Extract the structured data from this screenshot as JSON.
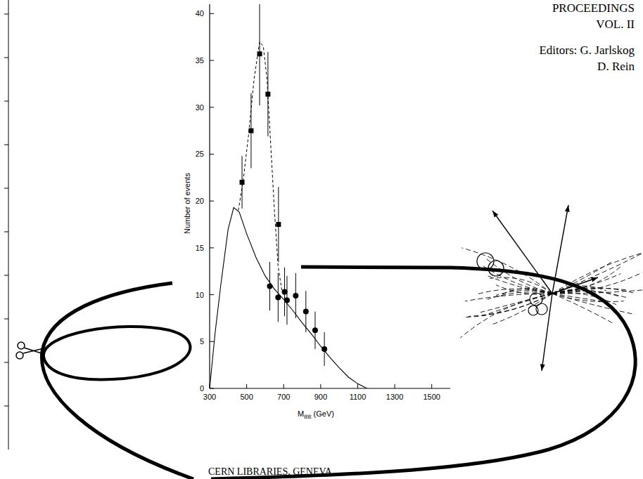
{
  "chart_data": {
    "type": "scatter",
    "x_label": "Mℓℓℓℓ (GeV)",
    "y_label": "Number of events",
    "xlim": [
      300,
      1600
    ],
    "xticks": [
      300,
      500,
      700,
      900,
      1100,
      1300,
      1500
    ],
    "ylim": [
      0,
      41
    ],
    "yticks": [
      0,
      5,
      10,
      15,
      20,
      25,
      30,
      35,
      40
    ],
    "grid": false,
    "series": [
      {
        "type": "line",
        "line_style": "solid",
        "color": "#000000",
        "x": [
          300,
          330,
          360,
          400,
          430,
          460,
          500,
          550,
          600,
          650,
          700,
          750,
          800,
          850,
          900,
          950,
          1000,
          1050,
          1100,
          1150
        ],
        "values": [
          0,
          6,
          11,
          17,
          19.3,
          18.8,
          16.5,
          14,
          12,
          10.6,
          9.5,
          8.3,
          7,
          5.8,
          4.5,
          3.3,
          2.2,
          1.2,
          0.5,
          0
        ]
      },
      {
        "type": "line",
        "line_style": "dashed",
        "color": "#000000",
        "x": [
          455,
          480,
          510,
          540,
          570,
          590,
          610,
          630,
          650,
          670,
          690,
          710
        ],
        "values": [
          19,
          22,
          27,
          33,
          37,
          36.5,
          33,
          26,
          19,
          13,
          10.5,
          9.5
        ]
      },
      {
        "type": "scatter",
        "marker": "square",
        "color": "#000000",
        "x": [
          475,
          524,
          570,
          615,
          672
        ],
        "values": [
          22,
          27.5,
          35.7,
          31.4,
          17.5
        ],
        "errors": [
          2.8,
          4,
          5.5,
          4.5,
          4
        ]
      },
      {
        "type": "scatter",
        "marker": "circle",
        "color": "#000000",
        "x": [
          625,
          670,
          705,
          718,
          765,
          820,
          870,
          920
        ],
        "values": [
          10.9,
          9.7,
          10.3,
          9.4,
          9.9,
          8.2,
          6.2,
          4.2
        ],
        "errors": [
          2.6,
          2.6,
          2.6,
          2.6,
          2.4,
          2.2,
          2.0,
          1.8
        ]
      }
    ]
  },
  "page": {
    "header": [
      "PROCEEDINGS",
      "VOL. II"
    ],
    "editors": [
      "Editors: G. Jarlskog",
      "D. Rein"
    ],
    "footer": "CERN LIBRARIES, GENEVA"
  }
}
